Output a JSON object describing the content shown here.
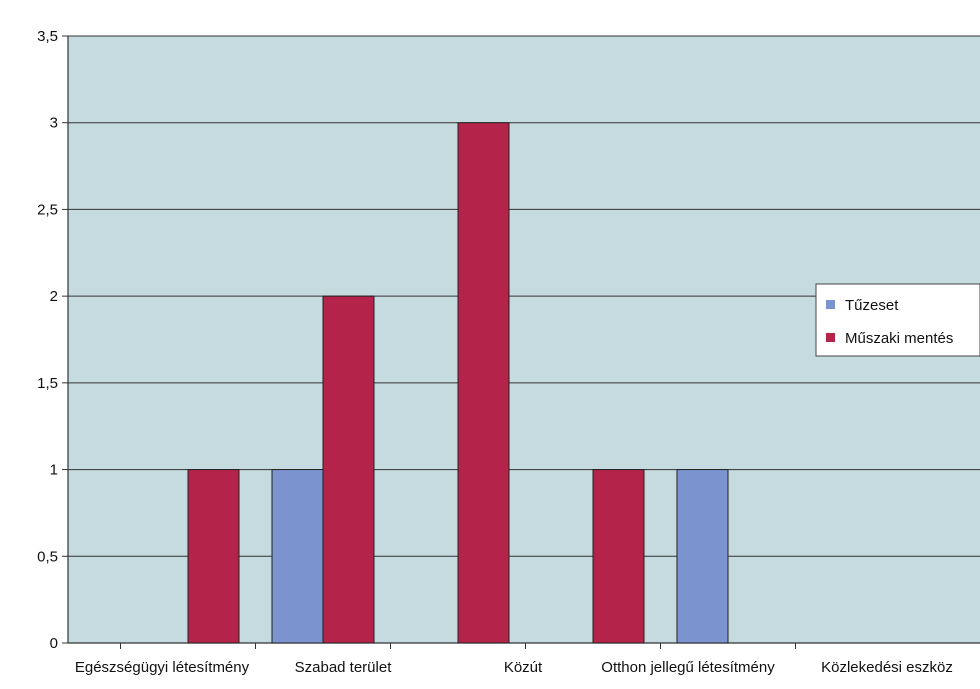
{
  "chart_data": {
    "type": "bar",
    "categories": [
      "Egészségügyi létesítmény",
      "Szabad terület",
      "Közút",
      "Otthon jellegű létesítmény",
      "Közlekedési eszköz"
    ],
    "series": [
      {
        "name": "Tűzeset",
        "values": [
          0,
          1,
          0,
          0,
          1
        ],
        "color": "#7b94cf"
      },
      {
        "name": "Műszaki mentés",
        "values": [
          1,
          2,
          3,
          1,
          0
        ],
        "color": "#b4244a"
      }
    ],
    "ylim": [
      0,
      3.5
    ],
    "yticks": [
      "0",
      "0,5",
      "1",
      "1,5",
      "2",
      "2,5",
      "3",
      "3,5"
    ],
    "grid": true,
    "legend_position": "right",
    "plot_background": "#c5dbe0"
  }
}
